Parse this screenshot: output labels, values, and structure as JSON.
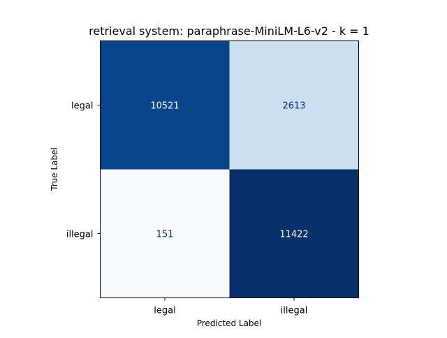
{
  "chart_data": {
    "type": "heatmap",
    "title": "retrieval system: paraphrase-MiniLM-L6-v2 - k = 1",
    "xlabel": "Predicted Label",
    "ylabel": "True Label",
    "x_categories": [
      "legal",
      "illegal"
    ],
    "y_categories": [
      "legal",
      "illegal"
    ],
    "values": [
      [
        10521,
        2613
      ],
      [
        151,
        11422
      ]
    ],
    "colormap": "Blues",
    "colors": {
      "low": "#f7fbff",
      "high": "#08306b",
      "text_on_dark": "#ffffff",
      "text_on_light": "#08306b"
    },
    "grid": false,
    "colorbar": false
  }
}
